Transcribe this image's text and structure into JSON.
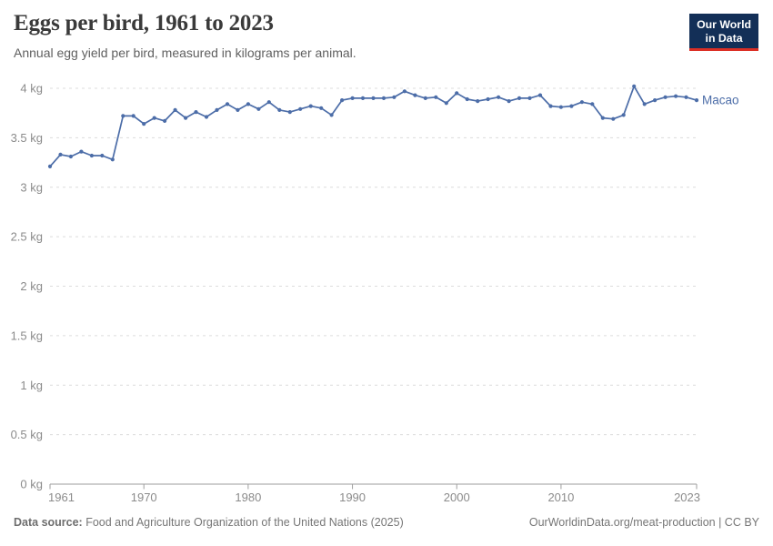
{
  "header": {
    "title": "Eggs per bird, 1961 to 2023",
    "subtitle": "Annual egg yield per bird, measured in kilograms per animal.",
    "logo": {
      "line1": "Our World",
      "line2": "in Data"
    }
  },
  "chart_data": {
    "type": "line",
    "title": "Eggs per bird, 1961 to 2023",
    "ylabel": "",
    "xlabel": "",
    "unit": "kg",
    "ylim": [
      0,
      4
    ],
    "xlim": [
      1961,
      2023
    ],
    "grid": "dashed-horizontal",
    "legend_position": "end-of-line",
    "yticks": [
      {
        "v": 0,
        "label": "0 kg"
      },
      {
        "v": 0.5,
        "label": "0.5 kg"
      },
      {
        "v": 1,
        "label": "1 kg"
      },
      {
        "v": 1.5,
        "label": "1.5 kg"
      },
      {
        "v": 2,
        "label": "2 kg"
      },
      {
        "v": 2.5,
        "label": "2.5 kg"
      },
      {
        "v": 3,
        "label": "3 kg"
      },
      {
        "v": 3.5,
        "label": "3.5 kg"
      },
      {
        "v": 4,
        "label": "4 kg"
      }
    ],
    "xticks": [
      {
        "v": 1961,
        "label": "1961",
        "align": "start"
      },
      {
        "v": 1970,
        "label": "1970",
        "align": "middle"
      },
      {
        "v": 1980,
        "label": "1980",
        "align": "middle"
      },
      {
        "v": 1990,
        "label": "1990",
        "align": "middle"
      },
      {
        "v": 2000,
        "label": "2000",
        "align": "middle"
      },
      {
        "v": 2010,
        "label": "2010",
        "align": "middle"
      },
      {
        "v": 2023,
        "label": "2023",
        "align": "end"
      }
    ],
    "series": [
      {
        "name": "Macao",
        "color": "#4c6da8",
        "x": [
          1961,
          1962,
          1963,
          1964,
          1965,
          1966,
          1967,
          1968,
          1969,
          1970,
          1971,
          1972,
          1973,
          1974,
          1975,
          1976,
          1977,
          1978,
          1979,
          1980,
          1981,
          1982,
          1983,
          1984,
          1985,
          1986,
          1987,
          1988,
          1989,
          1990,
          1991,
          1992,
          1993,
          1994,
          1995,
          1996,
          1997,
          1998,
          1999,
          2000,
          2001,
          2002,
          2003,
          2004,
          2005,
          2006,
          2007,
          2008,
          2009,
          2010,
          2011,
          2012,
          2013,
          2014,
          2015,
          2016,
          2017,
          2018,
          2019,
          2020,
          2021,
          2022,
          2023
        ],
        "values": [
          3.21,
          3.33,
          3.31,
          3.36,
          3.32,
          3.32,
          3.28,
          3.72,
          3.72,
          3.64,
          3.7,
          3.67,
          3.78,
          3.7,
          3.76,
          3.71,
          3.78,
          3.84,
          3.78,
          3.84,
          3.79,
          3.86,
          3.78,
          3.76,
          3.79,
          3.82,
          3.8,
          3.73,
          3.88,
          3.9,
          3.9,
          3.9,
          3.9,
          3.91,
          3.97,
          3.93,
          3.9,
          3.91,
          3.85,
          3.95,
          3.89,
          3.87,
          3.89,
          3.91,
          3.87,
          3.9,
          3.9,
          3.93,
          3.82,
          3.81,
          3.82,
          3.86,
          3.84,
          3.7,
          3.69,
          3.73,
          4.02,
          3.84,
          3.88,
          3.91,
          3.92,
          3.91,
          3.88
        ]
      }
    ]
  },
  "footer": {
    "source_label": "Data source:",
    "source_text": "Food and Agriculture Organization of the United Nations (2025)",
    "link_text": "OurWorldinData.org/meat-production | CC BY"
  },
  "colors": {
    "line": "#4c6da8",
    "logo_background": "#132f57",
    "logo_red": "#dc2f25",
    "gridline": "#dcdcdc",
    "axis": "#9e9e9e",
    "tick_label": "#8b8b8b",
    "title_text": "#3a3a3a",
    "subtitle_text": "#5f5f5f",
    "footer_text": "#767676"
  }
}
